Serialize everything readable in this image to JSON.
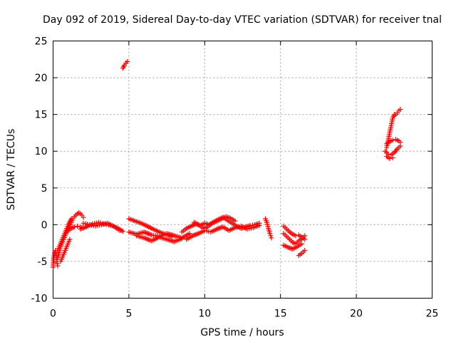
{
  "chart_data": {
    "type": "scatter",
    "title": "Day 092 of 2019, Sidereal Day-to-day VTEC variation (SDTVAR) for receiver tnal",
    "xlabel": "GPS time / hours",
    "ylabel": "SDTVAR / TECUs",
    "xlim": [
      0,
      25
    ],
    "ylim": [
      -10,
      25
    ],
    "xticks": [
      0,
      5,
      10,
      15,
      20,
      25
    ],
    "yticks": [
      -10,
      -5,
      0,
      5,
      10,
      15,
      20,
      25
    ],
    "xtick_labels": [
      "0",
      "5",
      "10",
      "15",
      "20",
      "25"
    ],
    "ytick_labels": [
      "-10",
      "-5",
      "0",
      "5",
      "10",
      "15",
      "20",
      "25"
    ],
    "grid": true,
    "marker": "+",
    "series_color": "#ff0000",
    "traces": [
      {
        "x": [
          0.0,
          0.05,
          0.1,
          0.15,
          0.2,
          0.25,
          0.3
        ],
        "y": [
          -5.8,
          -4.5,
          -3.8,
          -3.5,
          -4.2,
          -5.0,
          -5.6
        ]
      },
      {
        "x": [
          0.3,
          0.4,
          0.5,
          0.6,
          0.7,
          0.8,
          0.9,
          1.0,
          1.1,
          1.2,
          1.3,
          1.4,
          1.5,
          1.6,
          1.7,
          1.8,
          1.9,
          2.0
        ],
        "y": [
          -4.5,
          -3.8,
          -3.0,
          -2.5,
          -2.0,
          -1.5,
          -1.0,
          -0.6,
          -0.2,
          0.3,
          0.8,
          1.1,
          1.3,
          1.5,
          1.6,
          1.5,
          1.3,
          1.0
        ]
      },
      {
        "x": [
          0.3,
          0.4,
          0.5,
          0.6,
          0.7,
          0.8,
          0.9,
          1.0,
          1.1,
          1.2
        ],
        "y": [
          -3.5,
          -3.0,
          -2.5,
          -2.0,
          -1.5,
          -1.0,
          -0.5,
          0.0,
          0.4,
          0.8
        ]
      },
      {
        "x": [
          0.5,
          0.6,
          0.7,
          0.8,
          0.9,
          1.0,
          1.1
        ],
        "y": [
          -5.0,
          -4.5,
          -4.0,
          -3.5,
          -3.0,
          -2.5,
          -2.0
        ]
      },
      {
        "x": [
          1.0,
          1.2,
          1.4,
          1.6,
          1.8,
          2.0
        ],
        "y": [
          -0.8,
          -0.5,
          -0.3,
          -0.2,
          -0.3,
          -0.5
        ]
      },
      {
        "x": [
          2.0,
          2.4,
          2.8,
          3.2,
          3.6,
          4.0,
          4.4
        ],
        "y": [
          0.2,
          0.0,
          -0.2,
          0.0,
          0.2,
          -0.2,
          -0.8
        ]
      },
      {
        "x": [
          1.8,
          2.2,
          2.6,
          3.0,
          3.4,
          3.8,
          4.2,
          4.6
        ],
        "y": [
          -0.6,
          -0.3,
          0.1,
          0.3,
          0.1,
          -0.1,
          -0.4,
          -0.9
        ]
      },
      {
        "x": [
          4.6,
          4.7,
          4.8,
          4.9
        ],
        "y": [
          21.3,
          21.7,
          22.0,
          22.2
        ]
      },
      {
        "x": [
          5.0,
          5.4,
          5.8,
          6.2,
          6.6,
          7.0,
          7.4,
          7.8
        ],
        "y": [
          0.8,
          0.5,
          0.2,
          -0.2,
          -0.6,
          -1.0,
          -1.3,
          -1.6
        ]
      },
      {
        "x": [
          5.0,
          5.5,
          6.0,
          6.5,
          7.0,
          7.5,
          8.0,
          8.5,
          9.0
        ],
        "y": [
          -1.0,
          -1.3,
          -1.0,
          -1.4,
          -1.6,
          -1.2,
          -1.5,
          -1.8,
          -1.2
        ]
      },
      {
        "x": [
          5.5,
          6.0,
          6.5,
          7.0,
          7.5,
          8.0,
          8.5
        ],
        "y": [
          -1.5,
          -1.8,
          -2.2,
          -1.7,
          -2.0,
          -2.3,
          -1.9
        ]
      },
      {
        "x": [
          8.5,
          8.8,
          9.1,
          9.4,
          9.7,
          10.0,
          10.3,
          10.6,
          10.9,
          11.2,
          11.5,
          11.8,
          12.1,
          12.4,
          12.7,
          13.0,
          13.3,
          13.6
        ],
        "y": [
          -1.0,
          -0.5,
          -0.2,
          0.1,
          -0.1,
          0.2,
          0.0,
          0.4,
          0.7,
          1.0,
          0.6,
          0.2,
          -0.2,
          -0.5,
          -0.3,
          -0.1,
          0.0,
          0.2
        ]
      },
      {
        "x": [
          8.8,
          9.2,
          9.6,
          10.0,
          10.4,
          10.8,
          11.2,
          11.6,
          12.0,
          12.4,
          12.8,
          13.2,
          13.6
        ],
        "y": [
          -2.0,
          -1.5,
          -1.2,
          -0.8,
          -1.0,
          -0.6,
          -0.3,
          -0.8,
          -0.4,
          -0.2,
          -0.6,
          -0.4,
          -0.1
        ]
      },
      {
        "x": [
          9.3,
          9.6,
          9.9,
          10.2,
          10.5,
          10.8,
          11.1,
          11.4,
          11.7,
          12.0
        ],
        "y": [
          0.3,
          0.0,
          -0.5,
          -0.3,
          0.2,
          0.5,
          0.8,
          1.1,
          0.9,
          0.5
        ]
      },
      {
        "x": [
          14.0,
          14.1,
          14.2,
          14.3,
          14.4
        ],
        "y": [
          0.8,
          0.3,
          -0.5,
          -1.2,
          -1.8
        ]
      },
      {
        "x": [
          15.2,
          15.4,
          15.6,
          15.8,
          16.0,
          16.2,
          16.4,
          16.6
        ],
        "y": [
          -0.2,
          -0.6,
          -1.0,
          -1.3,
          -1.5,
          -1.4,
          -1.7,
          -2.0
        ]
      },
      {
        "x": [
          15.2,
          15.4,
          15.6,
          15.8,
          16.0,
          16.2,
          16.4,
          16.6
        ],
        "y": [
          -1.2,
          -1.6,
          -2.0,
          -2.4,
          -2.6,
          -2.2,
          -1.9,
          -1.5
        ]
      },
      {
        "x": [
          15.2,
          15.5,
          15.8,
          16.1,
          16.4
        ],
        "y": [
          -2.8,
          -3.1,
          -3.3,
          -3.0,
          -2.6
        ]
      },
      {
        "x": [
          16.2,
          16.4,
          16.6
        ],
        "y": [
          -4.2,
          -3.9,
          -3.5
        ]
      },
      {
        "x": [
          22.0,
          22.1,
          22.2,
          22.3,
          22.4,
          22.5
        ],
        "y": [
          10.5,
          11.5,
          12.5,
          13.5,
          14.5,
          15.0
        ]
      },
      {
        "x": [
          22.5,
          22.6,
          22.7,
          22.8,
          22.9
        ],
        "y": [
          14.8,
          15.0,
          15.2,
          15.5,
          15.7
        ]
      },
      {
        "x": [
          22.0,
          22.2,
          22.4,
          22.6,
          22.8,
          22.9
        ],
        "y": [
          11.0,
          11.3,
          11.5,
          11.6,
          11.4,
          11.2
        ]
      },
      {
        "x": [
          21.9,
          22.1,
          22.3,
          22.5,
          22.7,
          22.9
        ],
        "y": [
          10.0,
          9.6,
          9.5,
          9.8,
          10.3,
          10.7
        ]
      },
      {
        "x": [
          22.0,
          22.2,
          22.4
        ],
        "y": [
          9.3,
          9.0,
          9.1
        ]
      }
    ]
  }
}
